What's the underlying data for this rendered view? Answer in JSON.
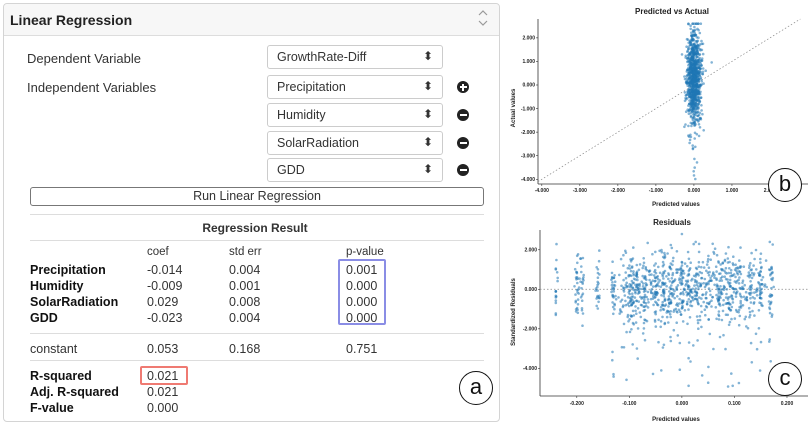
{
  "panel": {
    "title": "Linear Regression",
    "collapse_icon": "chevron-up-down-icon",
    "dependent_label": "Dependent Variable",
    "independent_label": "Independent Variables",
    "dependent_value": "GrowthRate-Diff",
    "independent_values": [
      "Precipitation",
      "Humidity",
      "SolarRadiation",
      "GDD"
    ],
    "run_button": "Run Linear Regression",
    "result_title": "Regression Result"
  },
  "results": {
    "headers": [
      "coef",
      "std err",
      "p-value"
    ],
    "rows": [
      {
        "name": "Precipitation",
        "coef": "-0.014",
        "stderr": "0.004",
        "p": "0.001"
      },
      {
        "name": "Humidity",
        "coef": "-0.009",
        "stderr": "0.001",
        "p": "0.000"
      },
      {
        "name": "SolarRadiation",
        "coef": "0.029",
        "stderr": "0.008",
        "p": "0.000"
      },
      {
        "name": "GDD",
        "coef": "-0.023",
        "stderr": "0.004",
        "p": "0.000"
      }
    ],
    "constant": {
      "name": "constant",
      "coef": "0.053",
      "stderr": "0.168",
      "p": "0.751"
    },
    "r_squared": {
      "label": "R-squared",
      "value": "0.021"
    },
    "adj_r_squared": {
      "label": "Adj. R-squared",
      "value": "0.021"
    },
    "f_value": {
      "label": "F-value",
      "value": "0.000"
    }
  },
  "labels": {
    "a": "a",
    "b": "b",
    "c": "c"
  },
  "colors": {
    "point": "#1f77b4",
    "pvalue_box": "#8a8de5",
    "rsq_box": "#ef7a72"
  },
  "chart_data": [
    {
      "type": "scatter",
      "title": "Predicted vs Actual",
      "xlabel": "Predicted values",
      "ylabel": "Actual values",
      "xticks": [
        "-4.000",
        "-3.000",
        "-2.000",
        "-1.000",
        "0.000",
        "1.000",
        "2.000"
      ],
      "yticks": [
        "2.000",
        "1.000",
        "0.000",
        "-1.000",
        "-2.000",
        "-3.000",
        "-4.000"
      ],
      "xlim": [
        -4.1,
        3.0
      ],
      "ylim": [
        -4.2,
        2.8
      ],
      "reference_line": "y = x (dotted)",
      "series": [
        {
          "x_center": 0.0,
          "x_spread": 0.3,
          "y_range": [
            -4.0,
            2.6
          ]
        }
      ]
    },
    {
      "type": "scatter",
      "title": "Residuals",
      "xlabel": "Predicted values",
      "ylabel": "Standardized Residuals",
      "xticks": [
        "-0.200",
        "-0.100",
        "0.000",
        "0.100",
        "0.200"
      ],
      "yticks": [
        "2.000",
        "0.000",
        "-2.000",
        "-4.000"
      ],
      "xlim": [
        -0.27,
        0.24
      ],
      "ylim": [
        -5.4,
        3.0
      ],
      "reference_line": "y = 0 (dotted)",
      "series": [
        {
          "x_range": [
            -0.22,
            0.22
          ],
          "y_range": [
            -5.2,
            2.8
          ]
        }
      ]
    }
  ]
}
